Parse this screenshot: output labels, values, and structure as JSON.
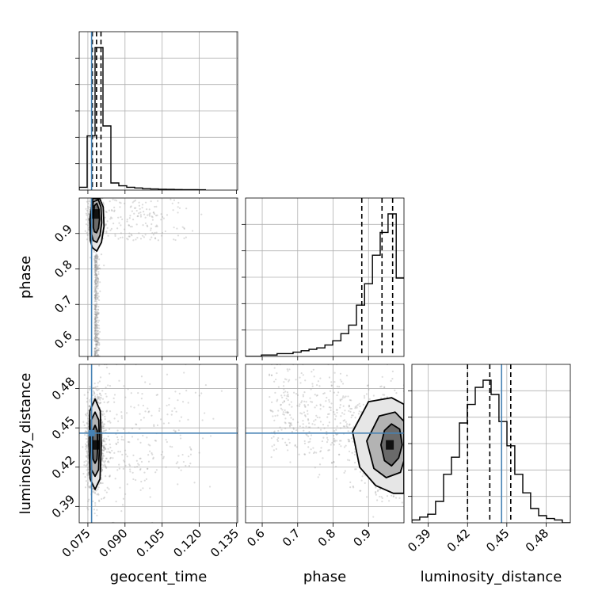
{
  "chart_data": {
    "type": "corner",
    "parameters": [
      "geocent_time",
      "phase",
      "luminosity_distance"
    ],
    "truths": {
      "geocent_time": 0.0765,
      "phase": null,
      "luminosity_distance": 0.446
    },
    "axes_ranges": {
      "geocent_time": [
        0.0715,
        0.1355
      ],
      "phase": [
        0.553,
        1.0
      ],
      "luminosity_distance": [
        0.3775,
        0.4985
      ]
    },
    "ticks": {
      "geocent_time": [
        0.075,
        0.09,
        0.105,
        0.12,
        0.135
      ],
      "phase": [
        0.6,
        0.7,
        0.8,
        0.9
      ],
      "luminosity_distance": [
        0.39,
        0.42,
        0.45,
        0.48
      ]
    },
    "tick_labels": {
      "geocent_time": [
        "0.075",
        "0.090",
        "0.105",
        "0.120",
        "0.135"
      ],
      "phase": [
        "0.6",
        "0.7",
        "0.8",
        "0.9"
      ],
      "luminosity_distance": [
        "0.39",
        "0.42",
        "0.45",
        "0.48"
      ]
    },
    "quantiles": {
      "geocent_time": [
        0.0768,
        0.0785,
        0.0803
      ],
      "phase": [
        0.881,
        0.938,
        0.968
      ],
      "luminosity_distance": [
        0.42,
        0.437,
        0.453
      ]
    },
    "histograms": {
      "geocent_time": {
        "edges": [
          0.0715,
          0.0747,
          0.0779,
          0.0811,
          0.0843,
          0.0875,
          0.0907,
          0.0939,
          0.0971,
          0.1003,
          0.1035,
          0.1067,
          0.1099,
          0.1131,
          0.1163,
          0.1195,
          0.1227
        ],
        "counts": [
          0.02,
          0.38,
          1.0,
          0.45,
          0.05,
          0.03,
          0.02,
          0.015,
          0.01,
          0.008,
          0.006,
          0.005,
          0.004,
          0.003,
          0.003,
          0.002
        ]
      },
      "phase": {
        "edges": [
          0.553,
          0.575,
          0.598,
          0.62,
          0.642,
          0.665,
          0.687,
          0.71,
          0.732,
          0.754,
          0.777,
          0.799,
          0.822,
          0.844,
          0.866,
          0.889,
          0.911,
          0.933,
          0.955,
          0.978,
          1.0
        ],
        "counts": [
          0.0,
          0.0,
          0.01,
          0.01,
          0.02,
          0.02,
          0.03,
          0.04,
          0.05,
          0.06,
          0.08,
          0.11,
          0.16,
          0.22,
          0.36,
          0.51,
          0.71,
          0.87,
          1.0,
          0.55
        ]
      },
      "luminosity_distance": {
        "edges": [
          0.3775,
          0.3835,
          0.3896,
          0.3956,
          0.4017,
          0.4077,
          0.4138,
          0.4198,
          0.4259,
          0.4319,
          0.438,
          0.444,
          0.4501,
          0.4561,
          0.4622,
          0.4682,
          0.4743,
          0.4803,
          0.4864,
          0.4924,
          0.4985
        ],
        "counts": [
          0.02,
          0.04,
          0.06,
          0.15,
          0.34,
          0.46,
          0.7,
          0.83,
          0.95,
          1.0,
          0.9,
          0.71,
          0.54,
          0.34,
          0.21,
          0.1,
          0.05,
          0.03,
          0.02,
          0.0
        ]
      }
    },
    "scatter_2d": [
      {
        "x_param": "geocent_time",
        "y_param": "phase",
        "peak": [
          0.0782,
          0.955
        ],
        "contours": [
          [
            [
              0.0772,
              0.917
            ],
            [
              0.0776,
              0.905
            ],
            [
              0.0785,
              0.902
            ],
            [
              0.0793,
              0.915
            ],
            [
              0.0797,
              0.94
            ],
            [
              0.0794,
              0.97
            ],
            [
              0.0786,
              0.985
            ],
            [
              0.0776,
              0.978
            ],
            [
              0.0772,
              0.95
            ]
          ],
          [
            [
              0.0765,
              0.898
            ],
            [
              0.0772,
              0.88
            ],
            [
              0.0786,
              0.875
            ],
            [
              0.0799,
              0.895
            ],
            [
              0.0806,
              0.93
            ],
            [
              0.0803,
              0.975
            ],
            [
              0.0792,
              0.995
            ],
            [
              0.0772,
              0.99
            ],
            [
              0.0764,
              0.94
            ]
          ],
          [
            [
              0.076,
              0.88
            ],
            [
              0.0768,
              0.86
            ],
            [
              0.0786,
              0.85
            ],
            [
              0.0805,
              0.875
            ],
            [
              0.0815,
              0.92
            ],
            [
              0.0812,
              0.975
            ],
            [
              0.0798,
              0.998
            ],
            [
              0.077,
              0.998
            ],
            [
              0.0758,
              0.94
            ]
          ]
        ]
      },
      {
        "x_param": "geocent_time",
        "y_param": "luminosity_distance",
        "peak": [
          0.0779,
          0.437
        ],
        "contours": [
          [
            [
              0.0768,
              0.437
            ],
            [
              0.0771,
              0.426
            ],
            [
              0.0779,
              0.423
            ],
            [
              0.0787,
              0.426
            ],
            [
              0.079,
              0.437
            ],
            [
              0.0788,
              0.448
            ],
            [
              0.0779,
              0.452
            ],
            [
              0.077,
              0.448
            ]
          ],
          [
            [
              0.0762,
              0.437
            ],
            [
              0.0765,
              0.418
            ],
            [
              0.0779,
              0.413
            ],
            [
              0.0793,
              0.418
            ],
            [
              0.0797,
              0.437
            ],
            [
              0.0794,
              0.456
            ],
            [
              0.0779,
              0.462
            ],
            [
              0.0764,
              0.456
            ]
          ],
          [
            [
              0.0755,
              0.437
            ],
            [
              0.0759,
              0.411
            ],
            [
              0.0779,
              0.403
            ],
            [
              0.0799,
              0.411
            ],
            [
              0.0804,
              0.437
            ],
            [
              0.08,
              0.463
            ],
            [
              0.0779,
              0.472
            ],
            [
              0.0758,
              0.463
            ]
          ]
        ]
      },
      {
        "x_param": "phase",
        "y_param": "luminosity_distance",
        "peak": [
          0.96,
          0.437
        ],
        "contours": [
          [
            [
              0.935,
              0.437
            ],
            [
              0.945,
              0.425
            ],
            [
              0.965,
              0.421
            ],
            [
              0.985,
              0.427
            ],
            [
              0.995,
              0.437
            ],
            [
              0.988,
              0.449
            ],
            [
              0.965,
              0.453
            ],
            [
              0.945,
              0.448
            ]
          ],
          [
            [
              0.895,
              0.44
            ],
            [
              0.915,
              0.419
            ],
            [
              0.95,
              0.412
            ],
            [
              0.99,
              0.416
            ],
            [
              1.0,
              0.425
            ],
            [
              1.0,
              0.455
            ],
            [
              0.975,
              0.462
            ],
            [
              0.93,
              0.459
            ]
          ],
          [
            [
              0.855,
              0.447
            ],
            [
              0.875,
              0.42
            ],
            [
              0.92,
              0.406
            ],
            [
              0.97,
              0.4
            ],
            [
              1.0,
              0.4
            ],
            [
              1.0,
              0.468
            ],
            [
              0.965,
              0.473
            ],
            [
              0.9,
              0.47
            ]
          ]
        ]
      }
    ],
    "grid": true,
    "colors": {
      "hist": "#000000",
      "truth": "#4682b4",
      "points": "#9a9a9a",
      "grid": "#b0b0b0"
    }
  }
}
